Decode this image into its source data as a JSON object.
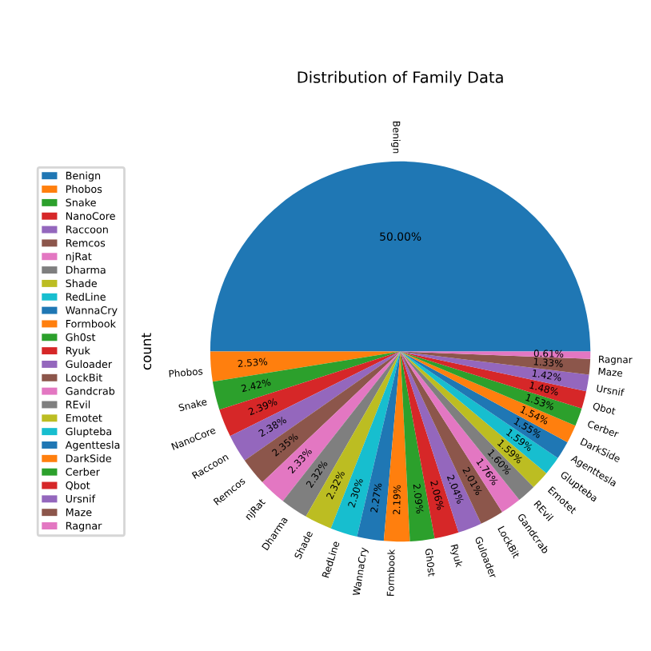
{
  "chart_data": {
    "type": "pie",
    "title": "Distribution of Family Data",
    "ylabel": "count",
    "categories": [
      "Benign",
      "Phobos",
      "Snake",
      "NanoCore",
      "Raccoon",
      "Remcos",
      "njRat",
      "Dharma",
      "Shade",
      "RedLine",
      "WannaCry",
      "Formbook",
      "Gh0st",
      "Ryuk",
      "Guloader",
      "LockBit",
      "Gandcrab",
      "REvil",
      "Emotet",
      "Glupteba",
      "Agenttesla",
      "DarkSide",
      "Cerber",
      "Qbot",
      "Ursnif",
      "Maze",
      "Ragnar"
    ],
    "values": [
      50.0,
      2.53,
      2.42,
      2.39,
      2.38,
      2.35,
      2.33,
      2.32,
      2.32,
      2.3,
      2.27,
      2.19,
      2.09,
      2.06,
      2.04,
      2.01,
      1.76,
      1.6,
      1.59,
      1.59,
      1.55,
      1.54,
      1.53,
      1.48,
      1.42,
      1.33,
      0.61
    ],
    "value_labels": [
      "50.00%",
      "2.53%",
      "2.42%",
      "2.39%",
      "2.38%",
      "2.35%",
      "2.33%",
      "2.32%",
      "2.32%",
      "2.30%",
      "2.27%",
      "2.19%",
      "2.09%",
      "2.06%",
      "2.04%",
      "2.01%",
      "1.76%",
      "1.60%",
      "1.59%",
      "1.59%",
      "1.55%",
      "1.54%",
      "1.53%",
      "1.48%",
      "1.42%",
      "1.33%",
      "0.61%"
    ],
    "colors": [
      "#1f77b4",
      "#ff7f0e",
      "#2ca02c",
      "#d62728",
      "#9467bd",
      "#8c564b",
      "#e377c2",
      "#7f7f7f",
      "#bcbd22",
      "#17becf",
      "#1f77b4",
      "#ff7f0e",
      "#2ca02c",
      "#d62728",
      "#9467bd",
      "#8c564b",
      "#e377c2",
      "#7f7f7f",
      "#bcbd22",
      "#17becf",
      "#1f77b4",
      "#ff7f0e",
      "#2ca02c",
      "#d62728",
      "#9467bd",
      "#8c564b",
      "#e377c2"
    ],
    "legend": "left"
  }
}
